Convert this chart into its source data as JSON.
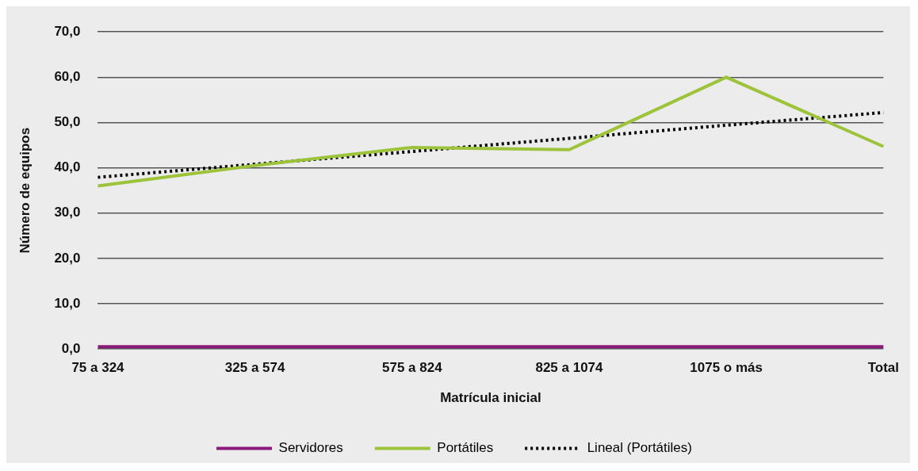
{
  "chart_data": {
    "type": "line",
    "xlabel": "Matrícula inicial",
    "ylabel": "Número de equipos",
    "categories": [
      "75 a 324",
      "325 a 574",
      "575 a 824",
      "825 a 1074",
      "1075 o más",
      "Total"
    ],
    "series": [
      {
        "name": "Servidores",
        "color": "#8b1a7d",
        "values": [
          0.5,
          0.5,
          0.5,
          0.5,
          0.5,
          0.5
        ]
      },
      {
        "name": "Portátiles",
        "color": "#9dc33b",
        "values": [
          36,
          40.5,
          44.5,
          44,
          60,
          44.7
        ]
      },
      {
        "name": "Lineal (Portátiles)",
        "color": "#000000",
        "line_style": "dotted",
        "values": [
          37.9,
          40.8,
          43.6,
          46.5,
          49.4,
          52.2
        ]
      }
    ],
    "ylim": [
      0,
      70
    ],
    "yticks": [
      {
        "value": 0,
        "label": "0,0"
      },
      {
        "value": 10,
        "label": "10,0"
      },
      {
        "value": 20,
        "label": "20,0"
      },
      {
        "value": 30,
        "label": "30,0"
      },
      {
        "value": 40,
        "label": "40,0"
      },
      {
        "value": 50,
        "label": "50,0"
      },
      {
        "value": 60,
        "label": "60,0"
      },
      {
        "value": 70,
        "label": "70,0"
      }
    ],
    "grid": "y",
    "legend": "bottom",
    "marker": "none"
  }
}
